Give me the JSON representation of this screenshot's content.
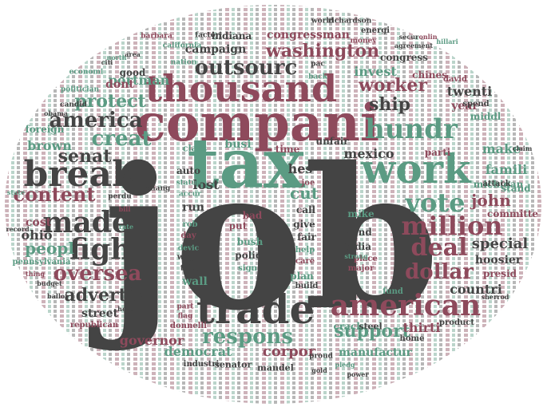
{
  "words": [
    {
      "text": "job",
      "tone": "g"
    },
    {
      "text": "tax",
      "tone": "t"
    },
    {
      "text": "compani",
      "tone": "r"
    },
    {
      "text": "thousand",
      "tone": "r"
    },
    {
      "text": "work",
      "tone": "t"
    },
    {
      "text": "trade",
      "tone": "g"
    },
    {
      "text": "break",
      "tone": "g"
    },
    {
      "text": "american",
      "tone": "r"
    },
    {
      "text": "hundr",
      "tone": "t"
    },
    {
      "text": "made",
      "tone": "g"
    },
    {
      "text": "fight",
      "tone": "g"
    },
    {
      "text": "million",
      "tone": "r"
    },
    {
      "text": "vote",
      "tone": "t"
    },
    {
      "text": "deal",
      "tone": "r"
    },
    {
      "text": "oversea",
      "tone": "r"
    },
    {
      "text": "america",
      "tone": "g"
    },
    {
      "text": "creat",
      "tone": "t"
    },
    {
      "text": "content",
      "tone": "r"
    },
    {
      "text": "dollar",
      "tone": "r"
    },
    {
      "text": "respons",
      "tone": "t"
    },
    {
      "text": "outsourc",
      "tone": "g"
    },
    {
      "text": "washington",
      "tone": "r"
    },
    {
      "text": "support",
      "tone": "t"
    },
    {
      "text": "worker",
      "tone": "r"
    },
    {
      "text": "protect",
      "tone": "t"
    },
    {
      "text": "advertis",
      "tone": "g"
    },
    {
      "text": "ship",
      "tone": "g"
    },
    {
      "text": "senat",
      "tone": "g"
    },
    {
      "text": "peopl",
      "tone": "t"
    },
    {
      "text": "cut",
      "tone": "t"
    },
    {
      "text": "john",
      "tone": "r"
    },
    {
      "text": "special",
      "tone": "g"
    },
    {
      "text": "corpor",
      "tone": "r"
    },
    {
      "text": "democrat",
      "tone": "t"
    },
    {
      "text": "governor",
      "tone": "r"
    },
    {
      "text": "manufactur",
      "tone": "t"
    },
    {
      "text": "mexico",
      "tone": "g"
    },
    {
      "text": "twenti",
      "tone": "g"
    },
    {
      "text": "invest",
      "tone": "t"
    },
    {
      "text": "make",
      "tone": "t"
    },
    {
      "text": "famili",
      "tone": "t"
    },
    {
      "text": "countri",
      "tone": "g"
    },
    {
      "text": "thirti",
      "tone": "r"
    },
    {
      "text": "hoosier",
      "tone": "g"
    },
    {
      "text": "brown",
      "tone": "t"
    },
    {
      "text": "portman",
      "tone": "t"
    },
    {
      "text": "campaign",
      "tone": "g"
    },
    {
      "text": "congressman",
      "tone": "r"
    },
    {
      "text": "dont",
      "tone": "r"
    },
    {
      "text": "year",
      "tone": "r"
    },
    {
      "text": "lost",
      "tone": "g"
    },
    {
      "text": "hes",
      "tone": "g"
    },
    {
      "text": "ohio",
      "tone": "g"
    },
    {
      "text": "cost",
      "tone": "r"
    },
    {
      "text": "busi",
      "tone": "t"
    },
    {
      "text": "foreign",
      "tone": "t"
    },
    {
      "text": "indiana",
      "tone": "g"
    },
    {
      "text": "congress",
      "tone": "g"
    },
    {
      "text": "chines",
      "tone": "r"
    },
    {
      "text": "michigan",
      "tone": "t"
    },
    {
      "text": "committe",
      "tone": "r"
    },
    {
      "text": "presid",
      "tone": "r"
    },
    {
      "text": "stand",
      "tone": "t"
    },
    {
      "text": "middl",
      "tone": "t"
    },
    {
      "text": "parti",
      "tone": "r"
    },
    {
      "text": "unfair",
      "tone": "g"
    },
    {
      "text": "mike",
      "tone": "t"
    },
    {
      "text": "india",
      "tone": "g"
    },
    {
      "text": "send",
      "tone": "g"
    },
    {
      "text": "give",
      "tone": "g"
    },
    {
      "text": "fair",
      "tone": "g"
    },
    {
      "text": "call",
      "tone": "g"
    },
    {
      "text": "time",
      "tone": "r"
    },
    {
      "text": "run",
      "tone": "g"
    },
    {
      "text": "auto",
      "tone": "g"
    },
    {
      "text": "wall",
      "tone": "t"
    },
    {
      "text": "bad",
      "tone": "r"
    },
    {
      "text": "put",
      "tone": "r"
    },
    {
      "text": "polici",
      "tone": "g"
    },
    {
      "text": "bush",
      "tone": "t"
    },
    {
      "text": "street",
      "tone": "g"
    },
    {
      "text": "good",
      "tone": "g"
    },
    {
      "text": "class",
      "tone": "t"
    },
    {
      "text": "crack",
      "tone": "t"
    },
    {
      "text": "steel",
      "tone": "g"
    },
    {
      "text": "mandel",
      "tone": "g"
    },
    {
      "text": "senator",
      "tone": "g"
    },
    {
      "text": "industri",
      "tone": "g"
    },
    {
      "text": "plan",
      "tone": "t"
    },
    {
      "text": "major",
      "tone": "r"
    },
    {
      "text": "place",
      "tone": "r"
    },
    {
      "text": "fund",
      "tone": "t"
    },
    {
      "text": "build",
      "tone": "g"
    },
    {
      "text": "spend",
      "tone": "g"
    },
    {
      "text": "david",
      "tone": "r"
    },
    {
      "text": "pennsylvania",
      "tone": "t"
    },
    {
      "text": "republican",
      "tone": "r"
    },
    {
      "text": "attack",
      "tone": "g"
    },
    {
      "text": "energi",
      "tone": "g"
    },
    {
      "text": "home",
      "tone": "g"
    },
    {
      "text": "product",
      "tone": "g"
    },
    {
      "text": "help",
      "tone": "t"
    },
    {
      "text": "care",
      "tone": "r"
    },
    {
      "text": "donnelli",
      "tone": "r"
    },
    {
      "text": "sign",
      "tone": "t"
    },
    {
      "text": "california",
      "tone": "t"
    },
    {
      "text": "barbara",
      "tone": "r"
    },
    {
      "text": "nation",
      "tone": "t"
    },
    {
      "text": "factori",
      "tone": "g"
    },
    {
      "text": "world",
      "tone": "g"
    },
    {
      "text": "richardson",
      "tone": "g"
    },
    {
      "text": "money",
      "tone": "r"
    },
    {
      "text": "candid",
      "tone": "g"
    },
    {
      "text": "politician",
      "tone": "t"
    },
    {
      "text": "economi",
      "tone": "t"
    },
    {
      "text": "rob",
      "tone": "t"
    },
    {
      "text": "day",
      "tone": "r"
    },
    {
      "text": "joe",
      "tone": "r"
    },
    {
      "text": "take",
      "tone": "g"
    },
    {
      "text": "wage",
      "tone": "g"
    },
    {
      "text": "proud",
      "tone": "g"
    },
    {
      "text": "back",
      "tone": "t"
    },
    {
      "text": "pac",
      "tone": "g"
    },
    {
      "text": "ballot",
      "tone": "g"
    },
    {
      "text": "obama",
      "tone": "g"
    },
    {
      "text": "state",
      "tone": "t"
    },
    {
      "text": "record",
      "tone": "g"
    },
    {
      "text": "sherrod",
      "tone": "g"
    },
    {
      "text": "claim",
      "tone": "g"
    },
    {
      "text": "budget",
      "tone": "g"
    },
    {
      "text": "thing",
      "tone": "r"
    },
    {
      "text": "bill",
      "tone": "r"
    },
    {
      "text": "rate",
      "tone": "t"
    },
    {
      "text": "head",
      "tone": "g"
    },
    {
      "text": "part",
      "tone": "r"
    },
    {
      "text": "flag",
      "tone": "r"
    },
    {
      "text": "perdu",
      "tone": "g"
    },
    {
      "text": "status",
      "tone": "t"
    },
    {
      "text": "accur",
      "tone": "t"
    },
    {
      "text": "chang",
      "tone": "g"
    },
    {
      "text": "devic",
      "tone": "t"
    },
    {
      "text": "strong",
      "tone": "t"
    },
    {
      "text": "hillari",
      "tone": "t"
    },
    {
      "text": "onlin",
      "tone": "r"
    },
    {
      "text": "secur",
      "tone": "g"
    },
    {
      "text": "agreement",
      "tone": "g"
    },
    {
      "text": "gold",
      "tone": "g"
    },
    {
      "text": "pledg",
      "tone": "t"
    },
    {
      "text": "power",
      "tone": "g"
    },
    {
      "text": "citi",
      "tone": "g"
    },
    {
      "text": "north",
      "tone": "t"
    },
    {
      "text": "area",
      "tone": "g"
    }
  ]
}
